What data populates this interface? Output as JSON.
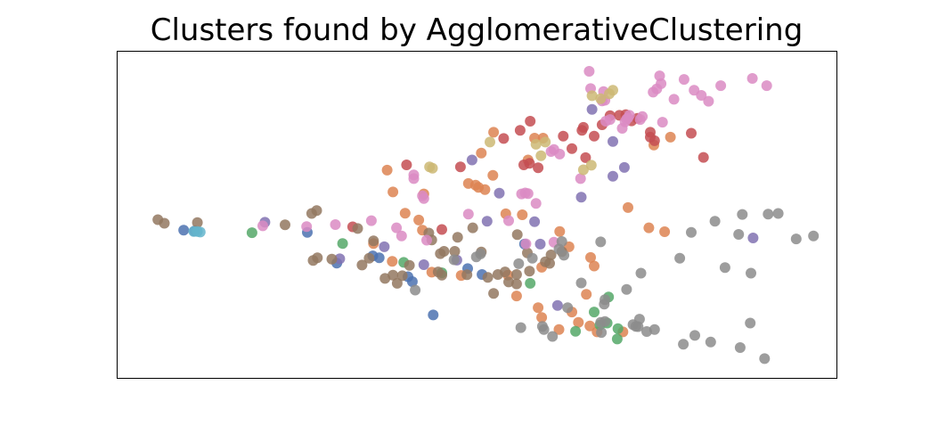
{
  "chart_data": {
    "type": "scatter",
    "title": "Clusters found by AgglomerativeClustering",
    "xlabel": "",
    "ylabel": "",
    "axis_ticks": false,
    "grid": false,
    "legend": "none",
    "xlim": [
      0,
      100
    ],
    "ylim": [
      0,
      100
    ],
    "marker_alpha": 0.85,
    "series": [
      {
        "color": "#4c72b0",
        "points": [
          [
            9.2,
            45.3
          ],
          [
            10.7,
            45.0
          ],
          [
            26.4,
            44.6
          ],
          [
            30.5,
            35.2
          ],
          [
            35.5,
            37.4
          ],
          [
            36.4,
            36.8
          ],
          [
            41.0,
            29.5
          ],
          [
            40.4,
            31.0
          ],
          [
            43.9,
            19.3
          ],
          [
            48.7,
            33.5
          ],
          [
            50.7,
            31.7
          ],
          [
            56.6,
            41.0
          ]
        ]
      },
      {
        "color": "#dd8452",
        "points": [
          [
            37.5,
            63.7
          ],
          [
            38.3,
            57.0
          ],
          [
            40.0,
            50.5
          ],
          [
            35.6,
            41.2
          ],
          [
            38.2,
            35.7
          ],
          [
            42.6,
            56.4
          ],
          [
            41.9,
            48.4
          ],
          [
            42.4,
            45.3
          ],
          [
            43.7,
            32.4
          ],
          [
            47.8,
            31.4
          ],
          [
            50.6,
            68.9
          ],
          [
            48.8,
            59.6
          ],
          [
            49.8,
            59.1
          ],
          [
            50.2,
            58.4
          ],
          [
            52.2,
            62.1
          ],
          [
            52.3,
            75.3
          ],
          [
            54.0,
            50.3
          ],
          [
            54.3,
            31.5
          ],
          [
            56.3,
            50.0
          ],
          [
            59.2,
            73.5
          ],
          [
            61.5,
            44.9
          ],
          [
            62.8,
            40.2
          ],
          [
            66.3,
            34.3
          ],
          [
            59.0,
            33.9
          ],
          [
            55.5,
            25.1
          ],
          [
            63.2,
            20.2
          ],
          [
            57.1,
            66.8
          ],
          [
            58.0,
            73.5
          ],
          [
            65.2,
            25.6
          ],
          [
            65.8,
            36.9
          ],
          [
            64.1,
            17.0
          ],
          [
            66.7,
            14.1
          ],
          [
            65.7,
            15.9
          ],
          [
            71.0,
            52.2
          ],
          [
            70.3,
            14.1
          ],
          [
            73.9,
            46.0
          ],
          [
            76.9,
            73.8
          ],
          [
            74.6,
            71.4
          ],
          [
            61.4,
            14.8
          ],
          [
            76.1,
            44.8
          ],
          [
            59.0,
            18.5
          ],
          [
            58.5,
            21.5
          ],
          [
            51.1,
            57.7
          ]
        ]
      },
      {
        "color": "#55a868",
        "points": [
          [
            18.7,
            44.5
          ],
          [
            31.3,
            41.2
          ],
          [
            39.8,
            35.4
          ],
          [
            45.1,
            32.2
          ],
          [
            57.4,
            29.0
          ],
          [
            66.3,
            20.2
          ],
          [
            67.1,
            16.2
          ],
          [
            68.1,
            16.8
          ],
          [
            68.3,
            24.8
          ],
          [
            69.6,
            15.1
          ],
          [
            69.5,
            11.9
          ],
          [
            63.7,
            14.3
          ]
        ]
      },
      {
        "color": "#c44e52",
        "points": [
          [
            32.7,
            46.3
          ],
          [
            40.2,
            65.3
          ],
          [
            45.1,
            45.5
          ],
          [
            47.7,
            64.7
          ],
          [
            53.7,
            73.4
          ],
          [
            56.0,
            75.9
          ],
          [
            57.4,
            78.7
          ],
          [
            56.5,
            65.3
          ],
          [
            57.3,
            65.8
          ],
          [
            58.5,
            64.4
          ],
          [
            62.0,
            74.1
          ],
          [
            63.2,
            70.3
          ],
          [
            65.1,
            67.5
          ],
          [
            64.6,
            75.9
          ],
          [
            64.8,
            76.8
          ],
          [
            66.3,
            74.1
          ],
          [
            67.4,
            77.6
          ],
          [
            68.5,
            80.4
          ],
          [
            69.8,
            80.5
          ],
          [
            70.7,
            80.7
          ],
          [
            71.5,
            78.8
          ],
          [
            72.3,
            79.6
          ],
          [
            74.7,
            72.7
          ],
          [
            74.1,
            75.3
          ],
          [
            79.8,
            75.0
          ],
          [
            81.5,
            67.6
          ],
          [
            74.1,
            73.8
          ]
        ]
      },
      {
        "color": "#8172b2",
        "points": [
          [
            20.5,
            47.7
          ],
          [
            30.9,
            36.5
          ],
          [
            37.1,
            40.2
          ],
          [
            42.6,
            34.7
          ],
          [
            47.2,
            36.1
          ],
          [
            49.3,
            66.8
          ],
          [
            51.4,
            48.0
          ],
          [
            53.1,
            56.6
          ],
          [
            58.0,
            47.9
          ],
          [
            58.8,
            41.0
          ],
          [
            61.2,
            22.2
          ],
          [
            64.5,
            55.4
          ],
          [
            66.0,
            82.3
          ],
          [
            68.9,
            72.5
          ],
          [
            68.9,
            61.8
          ],
          [
            70.5,
            64.5
          ],
          [
            88.4,
            42.9
          ]
        ]
      },
      {
        "color": "#937860",
        "points": [
          [
            5.6,
            48.5
          ],
          [
            6.5,
            47.4
          ],
          [
            11.1,
            47.6
          ],
          [
            23.3,
            46.9
          ],
          [
            27.0,
            50.4
          ],
          [
            27.7,
            51.3
          ],
          [
            27.2,
            36.0
          ],
          [
            27.8,
            36.8
          ],
          [
            29.8,
            36.4
          ],
          [
            33.4,
            45.8
          ],
          [
            34.0,
            34.6
          ],
          [
            35.6,
            42.0
          ],
          [
            35.0,
            36.7
          ],
          [
            37.2,
            30.5
          ],
          [
            38.9,
            29.0
          ],
          [
            38.3,
            31.5
          ],
          [
            39.6,
            31.3
          ],
          [
            40.6,
            34.5
          ],
          [
            43.7,
            42.3
          ],
          [
            43.3,
            44.4
          ],
          [
            44.6,
            32.5
          ],
          [
            45.1,
            31.5
          ],
          [
            47.3,
            43.1
          ],
          [
            44.9,
            38.1
          ],
          [
            45.4,
            38.8
          ],
          [
            46.9,
            38.8
          ],
          [
            48.6,
            31.6
          ],
          [
            49.4,
            46.0
          ],
          [
            50.6,
            38.6
          ],
          [
            51.5,
            30.8
          ],
          [
            55.6,
            43.9
          ],
          [
            57.0,
            38.3
          ],
          [
            57.3,
            32.7
          ],
          [
            59.5,
            35.6
          ],
          [
            60.1,
            35.1
          ],
          [
            60.3,
            37.7
          ],
          [
            61.8,
            38.7
          ],
          [
            53.9,
            32.5
          ],
          [
            52.9,
            31.7
          ],
          [
            54.4,
            29.4
          ],
          [
            52.3,
            25.9
          ],
          [
            55.5,
            28.8
          ],
          [
            55.5,
            31.7
          ]
        ]
      },
      {
        "color": "#da8bc3",
        "points": [
          [
            20.2,
            46.6
          ],
          [
            26.3,
            46.4
          ],
          [
            30.3,
            47.0
          ],
          [
            35.3,
            48.2
          ],
          [
            38.8,
            46.0
          ],
          [
            39.5,
            43.5
          ],
          [
            41.2,
            61.1
          ],
          [
            41.2,
            62.2
          ],
          [
            42.6,
            55.0
          ],
          [
            43.0,
            42.2
          ],
          [
            42.4,
            55.8
          ],
          [
            48.8,
            50.2
          ],
          [
            54.4,
            48.2
          ],
          [
            56.2,
            56.4
          ],
          [
            56.7,
            56.7
          ],
          [
            57.1,
            56.5
          ],
          [
            56.8,
            41.1
          ],
          [
            58.2,
            53.5
          ],
          [
            60.3,
            69.4
          ],
          [
            61.5,
            68.6
          ],
          [
            60.7,
            70.0
          ],
          [
            60.7,
            41.6
          ],
          [
            64.4,
            61.1
          ],
          [
            67.4,
            84.9
          ],
          [
            67.6,
            87.8
          ],
          [
            67.8,
            85.1
          ],
          [
            70.6,
            78.5
          ],
          [
            71.0,
            79.7
          ],
          [
            70.8,
            79.3
          ],
          [
            71.2,
            80.5
          ],
          [
            72.7,
            79.2
          ],
          [
            75.6,
            90.2
          ],
          [
            74.5,
            87.6
          ],
          [
            75.4,
            92.6
          ],
          [
            75.0,
            88.6
          ],
          [
            77.4,
            85.4
          ],
          [
            82.2,
            84.8
          ],
          [
            81.2,
            86.6
          ],
          [
            83.9,
            89.6
          ],
          [
            75.8,
            78.4
          ],
          [
            73.0,
            80.1
          ],
          [
            67.9,
            78.7
          ],
          [
            68.5,
            79.2
          ],
          [
            70.2,
            76.5
          ],
          [
            65.6,
            94.0
          ],
          [
            88.3,
            91.8
          ],
          [
            90.3,
            89.6
          ],
          [
            78.8,
            91.5
          ],
          [
            80.2,
            88.2
          ],
          [
            65.8,
            88.7
          ]
        ]
      },
      {
        "color": "#8c8c8c",
        "points": [
          [
            41.4,
            26.9
          ],
          [
            46.8,
            36.2
          ],
          [
            49.9,
            37.1
          ],
          [
            50.5,
            38.0
          ],
          [
            55.8,
            35.0
          ],
          [
            57.7,
            36.7
          ],
          [
            61.8,
            41.8
          ],
          [
            61.4,
            39.5
          ],
          [
            56.1,
            15.4
          ],
          [
            59.3,
            14.8
          ],
          [
            59.1,
            15.8
          ],
          [
            60.5,
            12.7
          ],
          [
            62.1,
            37.6
          ],
          [
            62.6,
            21.5
          ],
          [
            64.5,
            29.1
          ],
          [
            67.2,
            17.0
          ],
          [
            67.8,
            17.3
          ],
          [
            67.7,
            22.6
          ],
          [
            67.8,
            24.0
          ],
          [
            67.3,
            13.9
          ],
          [
            70.8,
            27.1
          ],
          [
            67.2,
            41.7
          ],
          [
            71.7,
            16.3
          ],
          [
            72.1,
            15.8
          ],
          [
            72.8,
            32.1
          ],
          [
            78.7,
            10.3
          ],
          [
            80.3,
            13.0
          ],
          [
            82.5,
            11.0
          ],
          [
            86.6,
            9.3
          ],
          [
            88.0,
            16.8
          ],
          [
            88.1,
            32.1
          ],
          [
            84.5,
            33.8
          ],
          [
            90.0,
            5.9
          ],
          [
            94.4,
            42.6
          ],
          [
            96.8,
            43.5
          ],
          [
            72.6,
            18.0
          ],
          [
            72.4,
            15.7
          ],
          [
            73.6,
            14.2
          ],
          [
            74.7,
            14.8
          ],
          [
            78.2,
            36.7
          ],
          [
            83.1,
            48.0
          ],
          [
            86.9,
            50.1
          ],
          [
            90.5,
            50.2
          ],
          [
            91.9,
            50.4
          ],
          [
            86.4,
            44.0
          ],
          [
            79.8,
            44.6
          ]
        ]
      },
      {
        "color": "#ccb974",
        "points": [
          [
            43.4,
            64.7
          ],
          [
            43.8,
            64.3
          ],
          [
            51.8,
            72.3
          ],
          [
            58.2,
            71.6
          ],
          [
            65.9,
            65.2
          ],
          [
            66.0,
            86.5
          ],
          [
            64.8,
            63.8
          ],
          [
            68.4,
            87.1
          ],
          [
            68.9,
            88.2
          ],
          [
            67.2,
            85.6
          ],
          [
            58.9,
            68.1
          ],
          [
            59.5,
            72.3
          ]
        ]
      },
      {
        "color": "#64b5cd",
        "points": [
          [
            10.6,
            44.9
          ],
          [
            11.1,
            44.9
          ],
          [
            11.5,
            44.7
          ]
        ]
      }
    ]
  }
}
